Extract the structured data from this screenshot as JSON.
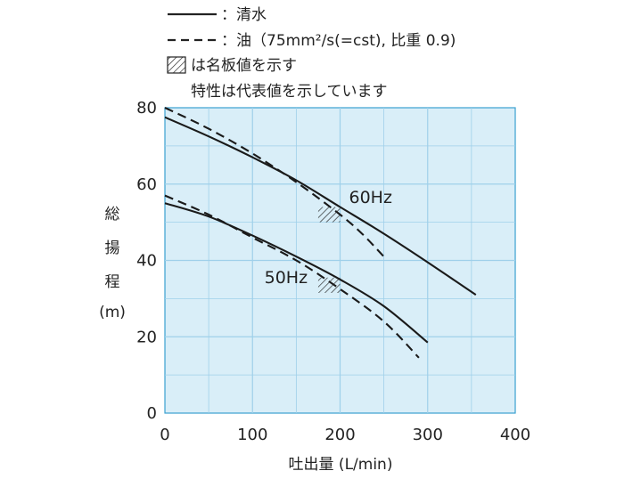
{
  "chart_data": {
    "type": "line",
    "title": "",
    "xlabel": "吐出量 (L/min)",
    "ylabel": [
      "総",
      "揚",
      "程",
      "(m)"
    ],
    "xlim": [
      0,
      400
    ],
    "ylim": [
      0,
      80
    ],
    "xticks": [
      0,
      100,
      200,
      300,
      400
    ],
    "yticks": [
      0,
      20,
      40,
      60,
      80
    ],
    "grid": true,
    "plot_background": "#d9eef8",
    "grid_color": "#9fd0ea",
    "legend": {
      "placement": "top-left",
      "items": [
        {
          "style": "solid",
          "label": "：清水"
        },
        {
          "style": "dashed",
          "label": "：油（75mm²/s(=cst), 比重 0.9)"
        },
        {
          "style": "hatch",
          "label": "は名板値を示す"
        }
      ],
      "note": "特性は代表値を示しています"
    },
    "series": [
      {
        "group": "60Hz",
        "style": "solid",
        "points": [
          [
            0,
            77.5
          ],
          [
            50,
            72.5
          ],
          [
            100,
            67
          ],
          [
            150,
            61
          ],
          [
            200,
            54
          ],
          [
            250,
            47
          ],
          [
            300,
            39.5
          ],
          [
            355,
            31
          ]
        ]
      },
      {
        "group": "60Hz",
        "style": "dashed",
        "points": [
          [
            0,
            80
          ],
          [
            50,
            74.5
          ],
          [
            100,
            68
          ],
          [
            150,
            60.5
          ],
          [
            200,
            52
          ],
          [
            225,
            47
          ],
          [
            250,
            41
          ]
        ]
      },
      {
        "group": "50Hz",
        "style": "solid",
        "points": [
          [
            0,
            55
          ],
          [
            50,
            51.5
          ],
          [
            100,
            46.5
          ],
          [
            150,
            41
          ],
          [
            200,
            35
          ],
          [
            250,
            28
          ],
          [
            300,
            18.5
          ]
        ]
      },
      {
        "group": "50Hz",
        "style": "dashed",
        "points": [
          [
            0,
            57
          ],
          [
            50,
            52
          ],
          [
            100,
            46
          ],
          [
            150,
            40
          ],
          [
            200,
            32.5
          ],
          [
            250,
            24
          ],
          [
            290,
            14.5
          ]
        ]
      }
    ],
    "annotations": [
      {
        "label": "60Hz",
        "x": 200,
        "y": 56
      },
      {
        "label": "50Hz",
        "x": 168,
        "y": 35
      }
    ],
    "rated_points": [
      {
        "group": "60Hz",
        "x_range": [
          175,
          200
        ],
        "y_range": [
          50,
          54
        ]
      },
      {
        "group": "50Hz",
        "x_range": [
          175,
          200
        ],
        "y_range": [
          31.5,
          35.5
        ]
      }
    ]
  }
}
